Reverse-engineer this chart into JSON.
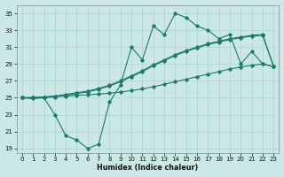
{
  "xlabel": "Humidex (Indice chaleur)",
  "x": [
    0,
    1,
    2,
    3,
    4,
    5,
    6,
    7,
    8,
    9,
    10,
    11,
    12,
    13,
    14,
    15,
    16,
    17,
    18,
    19,
    20,
    21,
    22,
    23
  ],
  "line_zigzag": [
    25,
    25,
    25,
    23,
    20.5,
    20.0,
    19.0,
    19.5,
    24.5,
    26.5,
    31.0,
    29.5,
    33.5,
    32.5,
    35.0,
    34.5,
    33.5,
    33.0,
    32.0,
    32.5,
    29.0,
    30.5,
    29.0,
    28.7
  ],
  "line_upper1": [
    25,
    25.0,
    25.1,
    25.2,
    25.4,
    25.6,
    25.8,
    26.1,
    26.5,
    27.0,
    27.6,
    28.2,
    28.9,
    29.5,
    30.1,
    30.6,
    31.0,
    31.4,
    31.7,
    32.0,
    32.2,
    32.4,
    32.5,
    28.7
  ],
  "line_upper2": [
    25,
    24.9,
    25.0,
    25.1,
    25.3,
    25.5,
    25.7,
    26.0,
    26.4,
    26.9,
    27.5,
    28.1,
    28.8,
    29.4,
    30.0,
    30.5,
    30.9,
    31.3,
    31.6,
    31.9,
    32.1,
    32.3,
    32.4,
    28.7
  ],
  "line_diag_low": [
    25,
    25.05,
    25.1,
    25.15,
    25.2,
    25.28,
    25.36,
    25.44,
    25.55,
    25.68,
    25.85,
    26.05,
    26.3,
    26.6,
    26.9,
    27.2,
    27.5,
    27.8,
    28.1,
    28.4,
    28.65,
    28.85,
    29.0,
    28.7
  ],
  "color": "#1a7a6e",
  "bg_color": "#cce8e6",
  "grid_color": "#a8d4d0",
  "ylim": [
    18.5,
    36.0
  ],
  "yticks": [
    19,
    21,
    23,
    25,
    27,
    29,
    31,
    33,
    35
  ],
  "xlim": [
    -0.5,
    23.5
  ],
  "xticks": [
    0,
    1,
    2,
    3,
    4,
    5,
    6,
    7,
    8,
    9,
    10,
    11,
    12,
    13,
    14,
    15,
    16,
    17,
    18,
    19,
    20,
    21,
    22,
    23
  ]
}
